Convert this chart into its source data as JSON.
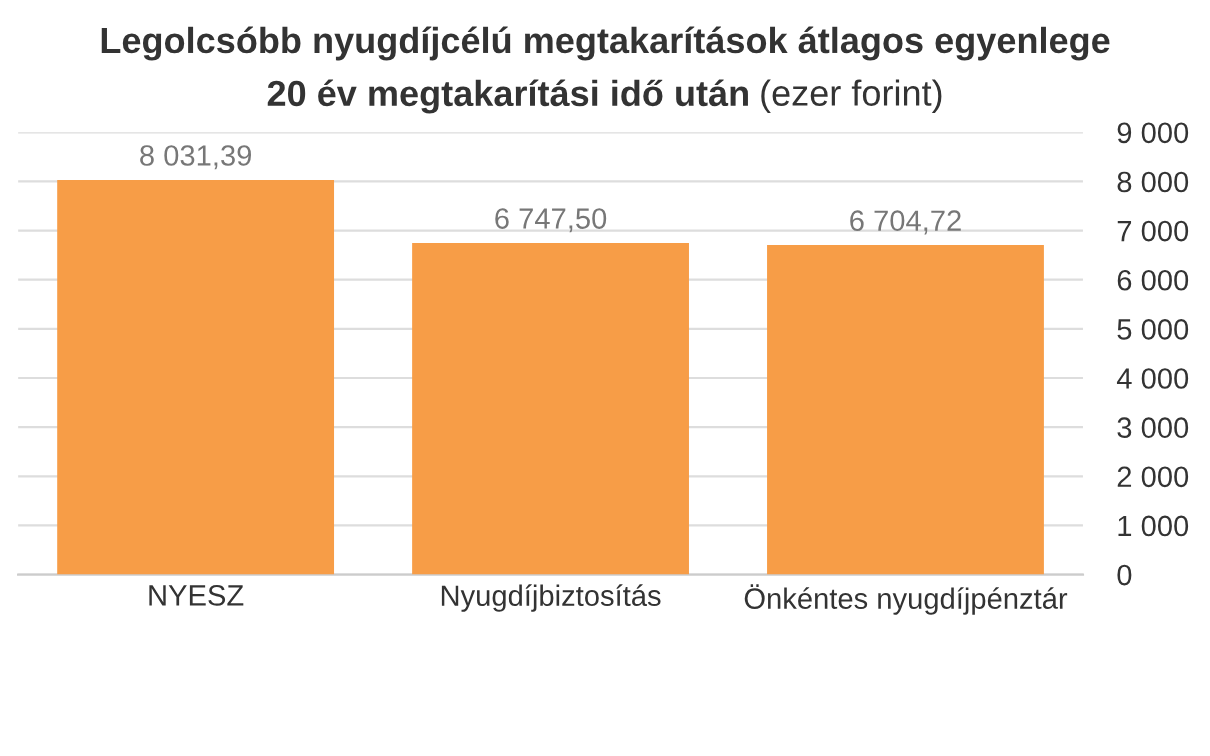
{
  "chart_data": {
    "type": "bar",
    "title": "Legolcsóbb nyugdíjcélú megtakarítások átlagos egyenlege 20 év megtakarítási idő után",
    "subtitle": "(ezer forint)",
    "categories": [
      "NYESZ",
      "Nyugdíjbiztosítás",
      "Önkéntes nyugdíjpénztár"
    ],
    "values": [
      8031.39,
      6747.5,
      6704.72
    ],
    "color": "#f79d47",
    "value_labels": [
      "8 031,39",
      "6 747,50",
      "6 704,72"
    ],
    "ylim": [
      0,
      9000
    ],
    "yticks": [
      {
        "value": 0,
        "label": "0"
      },
      {
        "value": 1000,
        "label": "1 000"
      },
      {
        "value": 2000,
        "label": "2 000"
      },
      {
        "value": 3000,
        "label": "3 000"
      },
      {
        "value": 4000,
        "label": "4 000"
      },
      {
        "value": 5000,
        "label": "5 000"
      },
      {
        "value": 6000,
        "label": "6 000"
      },
      {
        "value": 7000,
        "label": "7 000"
      },
      {
        "value": 8000,
        "label": "8 000"
      },
      {
        "value": 9000,
        "label": "9 000"
      }
    ],
    "grid": "y",
    "legend": false
  }
}
